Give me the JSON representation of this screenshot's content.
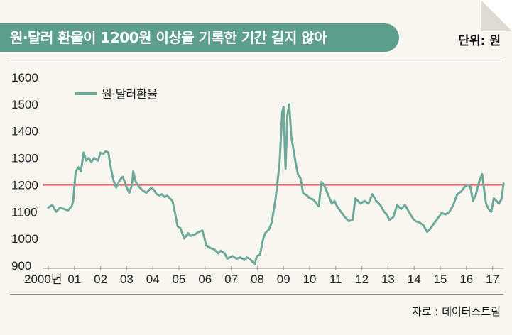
{
  "title": "원·달러 환율이 1200원 이상을 기록한 기간 길지 않아",
  "unit_label": "단위: 원",
  "source_label": "자료 : 데이터스트림",
  "colors": {
    "series": "#6fa997",
    "reference": "#c0272d",
    "title_bg": "#5d9e8d"
  },
  "chart_data": {
    "type": "line",
    "ylim": [
      900,
      1600
    ],
    "yticks": [
      "1600",
      "1500",
      "1400",
      "1300",
      "1200",
      "1100",
      "1000",
      "900"
    ],
    "xticks": [
      "2000년",
      "01",
      "02",
      "03",
      "04",
      "05",
      "06",
      "07",
      "08",
      "09",
      "10",
      "11",
      "12",
      "13",
      "14",
      "15",
      "16",
      "17"
    ],
    "xlim": [
      2000,
      2017.45
    ],
    "reference_line": 1200,
    "legend": {
      "label": "원·달러환율",
      "position": "top-left"
    },
    "series": [
      {
        "name": "원·달러환율",
        "points": [
          [
            2000.0,
            1115
          ],
          [
            2000.15,
            1125
          ],
          [
            2000.3,
            1100
          ],
          [
            2000.45,
            1115
          ],
          [
            2000.6,
            1110
          ],
          [
            2000.75,
            1105
          ],
          [
            2000.9,
            1120
          ],
          [
            2000.95,
            1140
          ],
          [
            2001.05,
            1250
          ],
          [
            2001.15,
            1265
          ],
          [
            2001.25,
            1250
          ],
          [
            2001.35,
            1320
          ],
          [
            2001.45,
            1290
          ],
          [
            2001.55,
            1300
          ],
          [
            2001.65,
            1285
          ],
          [
            2001.75,
            1300
          ],
          [
            2001.9,
            1290
          ],
          [
            2002.0,
            1320
          ],
          [
            2002.1,
            1315
          ],
          [
            2002.2,
            1325
          ],
          [
            2002.3,
            1320
          ],
          [
            2002.4,
            1260
          ],
          [
            2002.5,
            1215
          ],
          [
            2002.6,
            1190
          ],
          [
            2002.75,
            1220
          ],
          [
            2002.85,
            1230
          ],
          [
            2003.0,
            1190
          ],
          [
            2003.1,
            1170
          ],
          [
            2003.2,
            1200
          ],
          [
            2003.25,
            1250
          ],
          [
            2003.35,
            1210
          ],
          [
            2003.5,
            1190
          ],
          [
            2003.6,
            1180
          ],
          [
            2003.75,
            1170
          ],
          [
            2003.85,
            1180
          ],
          [
            2003.95,
            1190
          ],
          [
            2004.05,
            1180
          ],
          [
            2004.15,
            1165
          ],
          [
            2004.25,
            1160
          ],
          [
            2004.35,
            1165
          ],
          [
            2004.45,
            1155
          ],
          [
            2004.55,
            1160
          ],
          [
            2004.65,
            1150
          ],
          [
            2004.75,
            1140
          ],
          [
            2004.85,
            1095
          ],
          [
            2004.95,
            1045
          ],
          [
            2005.05,
            1040
          ],
          [
            2005.2,
            1000
          ],
          [
            2005.35,
            1020
          ],
          [
            2005.45,
            1010
          ],
          [
            2005.6,
            1015
          ],
          [
            2005.75,
            1025
          ],
          [
            2005.9,
            1030
          ],
          [
            2005.95,
            1010
          ],
          [
            2006.05,
            975
          ],
          [
            2006.2,
            965
          ],
          [
            2006.35,
            960
          ],
          [
            2006.5,
            945
          ],
          [
            2006.6,
            955
          ],
          [
            2006.75,
            945
          ],
          [
            2006.85,
            925
          ],
          [
            2006.95,
            930
          ],
          [
            2007.05,
            935
          ],
          [
            2007.2,
            925
          ],
          [
            2007.35,
            930
          ],
          [
            2007.5,
            920
          ],
          [
            2007.6,
            930
          ],
          [
            2007.7,
            925
          ],
          [
            2007.8,
            915
          ],
          [
            2007.9,
            905
          ],
          [
            2007.98,
            935
          ],
          [
            2008.1,
            940
          ],
          [
            2008.2,
            990
          ],
          [
            2008.3,
            1020
          ],
          [
            2008.45,
            1035
          ],
          [
            2008.55,
            1060
          ],
          [
            2008.7,
            1150
          ],
          [
            2008.85,
            1280
          ],
          [
            2008.95,
            1470
          ],
          [
            2009.0,
            1490
          ],
          [
            2009.08,
            1260
          ],
          [
            2009.15,
            1460
          ],
          [
            2009.22,
            1500
          ],
          [
            2009.3,
            1380
          ],
          [
            2009.45,
            1290
          ],
          [
            2009.55,
            1240
          ],
          [
            2009.65,
            1225
          ],
          [
            2009.75,
            1170
          ],
          [
            2009.9,
            1160
          ],
          [
            2010.0,
            1150
          ],
          [
            2010.15,
            1145
          ],
          [
            2010.35,
            1120
          ],
          [
            2010.45,
            1210
          ],
          [
            2010.55,
            1200
          ],
          [
            2010.7,
            1165
          ],
          [
            2010.85,
            1130
          ],
          [
            2010.95,
            1140
          ],
          [
            2011.05,
            1120
          ],
          [
            2011.2,
            1100
          ],
          [
            2011.35,
            1080
          ],
          [
            2011.5,
            1065
          ],
          [
            2011.65,
            1070
          ],
          [
            2011.75,
            1150
          ],
          [
            2011.85,
            1140
          ],
          [
            2011.95,
            1130
          ],
          [
            2012.1,
            1140
          ],
          [
            2012.25,
            1130
          ],
          [
            2012.4,
            1165
          ],
          [
            2012.55,
            1140
          ],
          [
            2012.7,
            1125
          ],
          [
            2012.85,
            1100
          ],
          [
            2012.95,
            1090
          ],
          [
            2013.05,
            1070
          ],
          [
            2013.2,
            1080
          ],
          [
            2013.35,
            1125
          ],
          [
            2013.5,
            1110
          ],
          [
            2013.65,
            1125
          ],
          [
            2013.8,
            1100
          ],
          [
            2013.95,
            1075
          ],
          [
            2014.05,
            1065
          ],
          [
            2014.2,
            1060
          ],
          [
            2014.35,
            1050
          ],
          [
            2014.5,
            1025
          ],
          [
            2014.6,
            1035
          ],
          [
            2014.75,
            1055
          ],
          [
            2014.9,
            1075
          ],
          [
            2015.05,
            1095
          ],
          [
            2015.2,
            1090
          ],
          [
            2015.35,
            1100
          ],
          [
            2015.5,
            1125
          ],
          [
            2015.65,
            1165
          ],
          [
            2015.8,
            1175
          ],
          [
            2015.95,
            1195
          ],
          [
            2016.05,
            1200
          ],
          [
            2016.15,
            1195
          ],
          [
            2016.25,
            1140
          ],
          [
            2016.35,
            1160
          ],
          [
            2016.5,
            1215
          ],
          [
            2016.6,
            1240
          ],
          [
            2016.75,
            1130
          ],
          [
            2016.85,
            1110
          ],
          [
            2016.95,
            1100
          ],
          [
            2017.05,
            1150
          ],
          [
            2017.15,
            1140
          ],
          [
            2017.25,
            1130
          ],
          [
            2017.35,
            1150
          ],
          [
            2017.42,
            1205
          ]
        ]
      }
    ]
  }
}
